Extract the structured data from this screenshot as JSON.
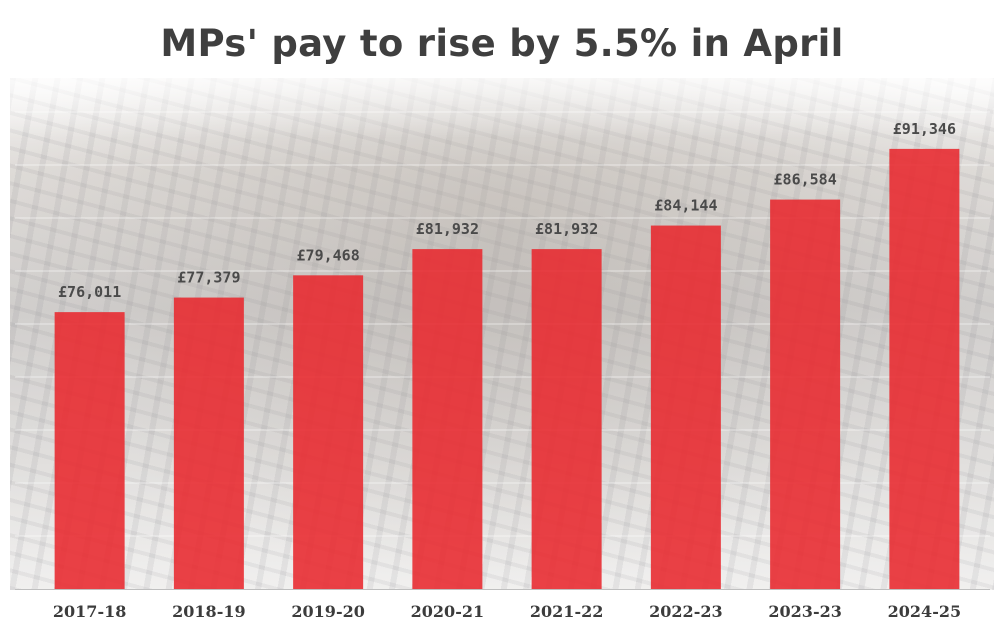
{
  "title": "MPs' pay to rise by 5.5% in April",
  "colors": {
    "bar": "#e8282e",
    "gridline": "#ffffff",
    "axis": "#bfbfbf",
    "background_photo": "house-of-commons-chamber"
  },
  "chart_data": {
    "type": "bar",
    "title": "MPs' pay to rise by 5.5% in April",
    "categories": [
      "2017-18",
      "2018-19",
      "2019-20",
      "2020-21",
      "2021-22",
      "2022-23",
      "2023-23",
      "2024-25"
    ],
    "values": [
      76011,
      77379,
      79468,
      81932,
      81932,
      84144,
      86584,
      91346
    ],
    "value_labels": [
      "£76,011",
      "£77,379",
      "£79,468",
      "£81,932",
      "£81,932",
      "£84,144",
      "£86,584",
      "£91,346"
    ],
    "xlabel": "",
    "ylabel": "",
    "ylim": [
      50000,
      95000
    ],
    "grid": true,
    "legend": "none"
  }
}
